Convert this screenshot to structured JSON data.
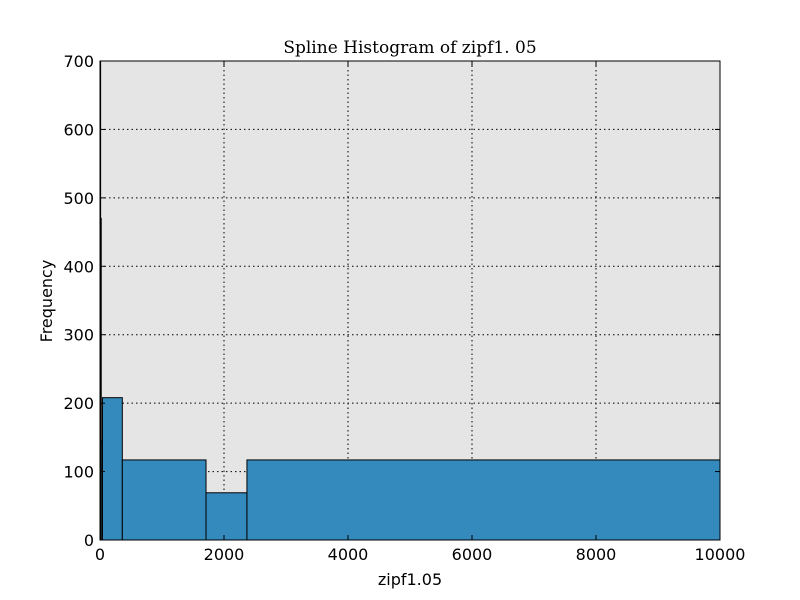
{
  "chart_data": {
    "type": "bar",
    "title": "Spline Histogram of zipf1. 05",
    "xlabel": "zipf1.05",
    "ylabel": "Frequency",
    "xlim": [
      0,
      10000
    ],
    "ylim": [
      0,
      700
    ],
    "xticks": [
      0,
      2000,
      4000,
      6000,
      8000,
      10000
    ],
    "xtick_labels": [
      "0",
      "2000",
      "4000",
      "6000",
      "8000",
      "10000"
    ],
    "yticks": [
      0,
      100,
      200,
      300,
      400,
      500,
      600,
      700
    ],
    "ytick_labels": [
      "0",
      "100",
      "200",
      "300",
      "400",
      "500",
      "600",
      "700"
    ],
    "grid": true,
    "bins": [
      {
        "x0": 0,
        "x1": 10,
        "value": 700
      },
      {
        "x0": 10,
        "x1": 20,
        "value": 470
      },
      {
        "x0": 20,
        "x1": 40,
        "value": 145
      },
      {
        "x0": 40,
        "x1": 360,
        "value": 208
      },
      {
        "x0": 360,
        "x1": 1710,
        "value": 117
      },
      {
        "x0": 1710,
        "x1": 2370,
        "value": 69
      },
      {
        "x0": 2370,
        "x1": 10000,
        "value": 117
      }
    ],
    "colors": {
      "bar_fill": "#348ABD",
      "bar_edge": "#000000",
      "plot_background": "#E5E5E5",
      "grid": "#000000"
    }
  }
}
